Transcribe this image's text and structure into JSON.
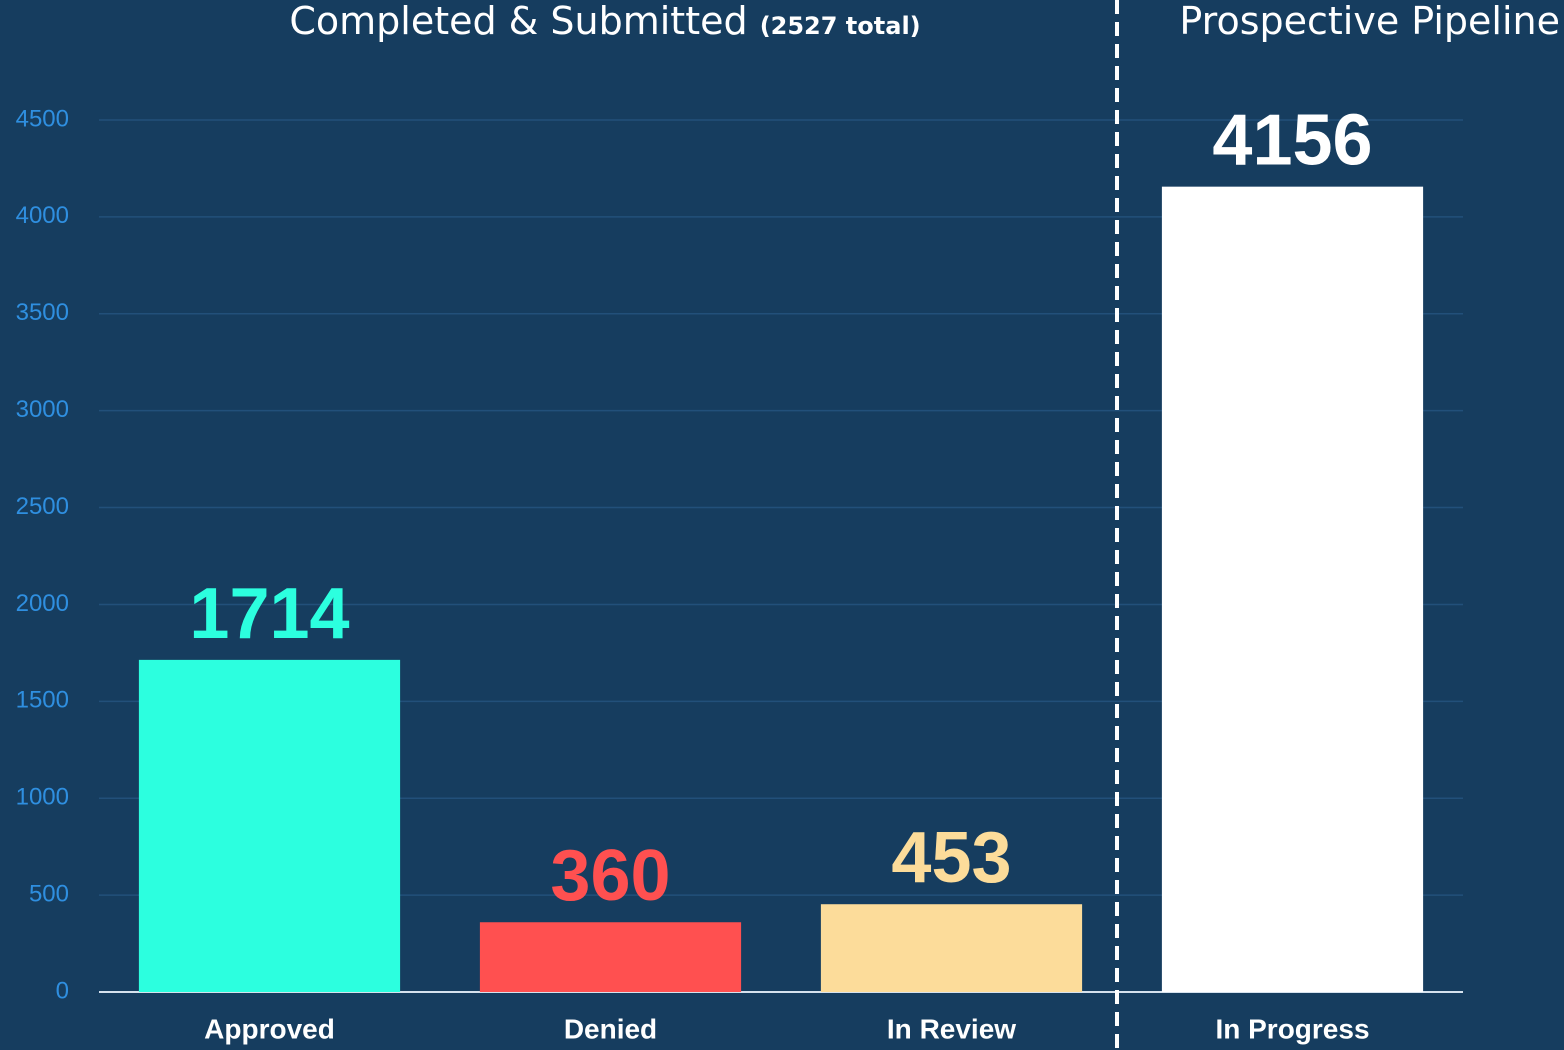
{
  "chart_data": {
    "type": "bar",
    "group_titles": [
      {
        "text": "Completed & Submitted",
        "note": "(2527 total)"
      },
      {
        "text": "Prospective Pipeline"
      }
    ],
    "categories": [
      "Approved",
      "Denied",
      "In Review",
      "In Progress"
    ],
    "values": [
      1714,
      360,
      453,
      4156
    ],
    "colors": [
      "#2cffdf",
      "#ff5050",
      "#fcdc9a",
      "#ffffff"
    ],
    "ylim": [
      0,
      4500
    ],
    "yticks": [
      0,
      500,
      1000,
      1500,
      2000,
      2500,
      3000,
      3500,
      4000,
      4500
    ],
    "grid": true
  }
}
